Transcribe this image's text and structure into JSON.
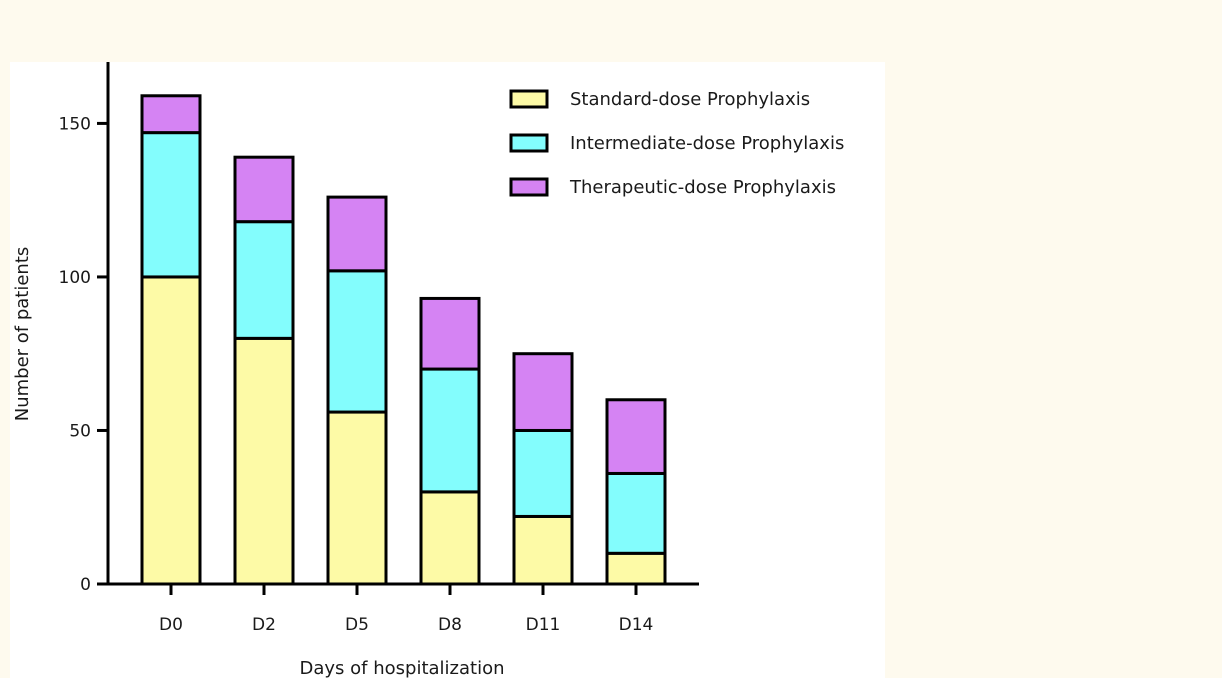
{
  "chart_data": {
    "type": "bar",
    "stacked": true,
    "categories": [
      "D0",
      "D2",
      "D5",
      "D8",
      "D11",
      "D14"
    ],
    "series": [
      {
        "name": "Standard-dose Prophylaxis",
        "color": "#fdfaa6",
        "values": [
          100,
          80,
          56,
          30,
          22,
          10
        ]
      },
      {
        "name": "Intermediate-dose Prophylaxis",
        "color": "#83fdfd",
        "values": [
          47,
          38,
          46,
          40,
          28,
          26
        ]
      },
      {
        "name": "Therapeutic-dose Prophylaxis",
        "color": "#d583f3",
        "values": [
          12,
          21,
          24,
          23,
          25,
          24
        ]
      }
    ],
    "xlabel": "Days of hospitalization",
    "ylabel": "Number of patients",
    "ylim": [
      0,
      170
    ],
    "yticks": [
      0,
      50,
      100,
      150
    ],
    "grid": false,
    "legend_position": "top-right"
  }
}
